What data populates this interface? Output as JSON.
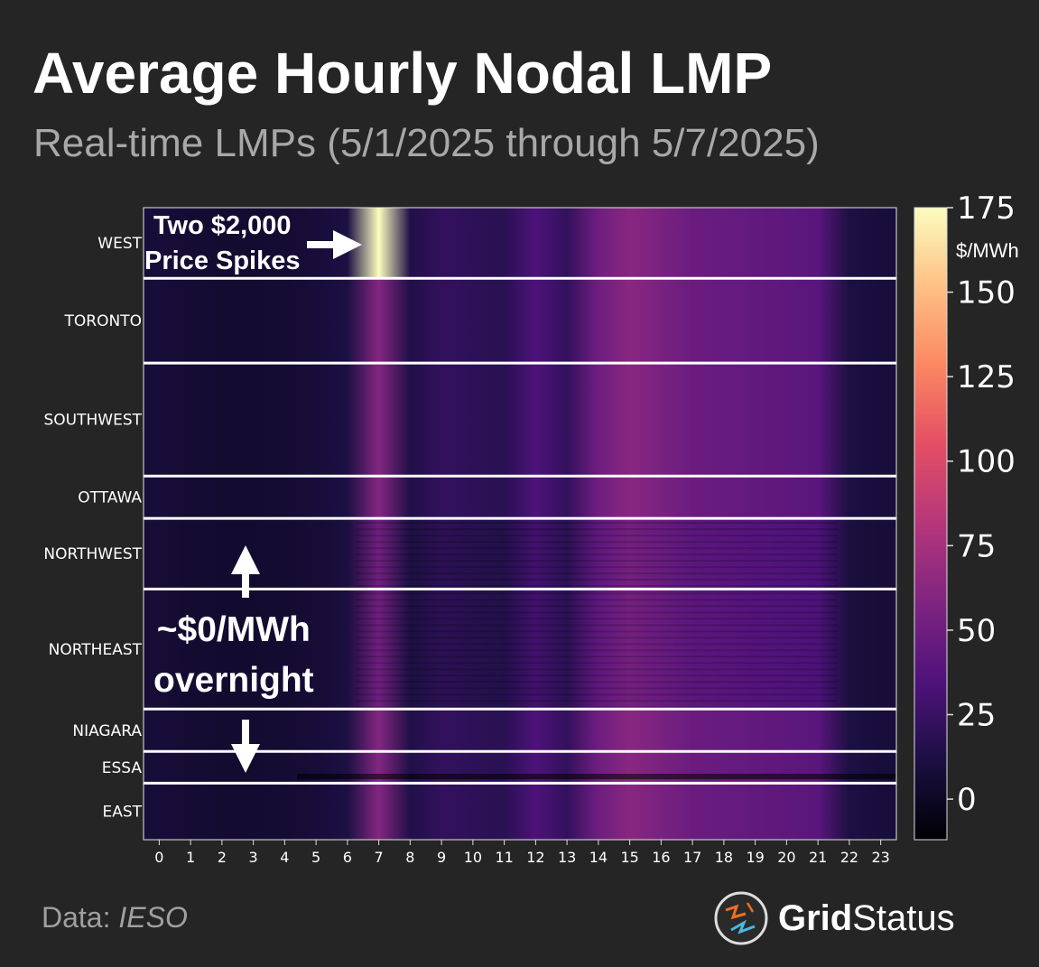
{
  "title": "Average Hourly Nodal LMP",
  "subtitle": "Real-time LMPs (5/1/2025 through 5/7/2025)",
  "source_prefix": "Data: ",
  "source_name": "IESO",
  "brand": {
    "bold": "Grid",
    "light": "Status",
    "logo_icon": "grid-status-logo-icon"
  },
  "annotations": {
    "spike_line1": "Two $2,000",
    "spike_line2": "Price Spikes",
    "overnight_line1": "~$0/MWh",
    "overnight_line2": "overnight"
  },
  "chart_data": {
    "type": "heatmap",
    "title": "Average Hourly Nodal LMP",
    "xlabel": "",
    "ylabel": "",
    "x": [
      0,
      1,
      2,
      3,
      4,
      5,
      6,
      7,
      8,
      9,
      10,
      11,
      12,
      13,
      14,
      15,
      16,
      17,
      18,
      19,
      20,
      21,
      22,
      23
    ],
    "regions": [
      {
        "name": "WEST",
        "weight": 1.0
      },
      {
        "name": "TORONTO",
        "weight": 1.2
      },
      {
        "name": "SOUTHWEST",
        "weight": 1.6
      },
      {
        "name": "OTTAWA",
        "weight": 0.6
      },
      {
        "name": "NORTHWEST",
        "weight": 1.0
      },
      {
        "name": "NORTHEAST",
        "weight": 1.7
      },
      {
        "name": "NIAGARA",
        "weight": 0.6
      },
      {
        "name": "ESSA",
        "weight": 0.45
      },
      {
        "name": "EAST",
        "weight": 0.8
      }
    ],
    "hourly_profile_usd_mwh": [
      8,
      6,
      5,
      5,
      6,
      8,
      12,
      60,
      14,
      22,
      20,
      18,
      34,
      22,
      50,
      62,
      55,
      48,
      46,
      44,
      42,
      40,
      12,
      9
    ],
    "west_peak_hour7": 175,
    "colorbar": {
      "label": "$/MWh",
      "ticks": [
        0,
        25,
        50,
        75,
        100,
        125,
        150,
        175
      ],
      "range": [
        -12,
        175
      ],
      "colormap": "magma"
    }
  }
}
